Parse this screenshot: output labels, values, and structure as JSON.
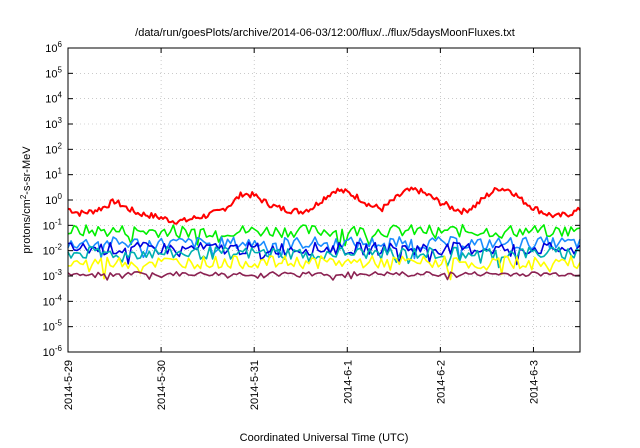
{
  "chart_data": {
    "type": "line",
    "title": "/data/run/goesPlots/archive/2014-06-03/12:00/flux/../flux/5daysMoonFluxes.txt",
    "xlabel": "Coordinated Universal Time (UTC)",
    "ylabel_parts": [
      "protons/cm",
      "2",
      "-s-sr-MeV"
    ],
    "y_scale": "log",
    "ylim": [
      1e-06,
      1000000.0
    ],
    "y_ticks": [
      {
        "base": "10",
        "exp": "-6",
        "value": 1e-06
      },
      {
        "base": "10",
        "exp": "-5",
        "value": 1e-05
      },
      {
        "base": "10",
        "exp": "-4",
        "value": 0.0001
      },
      {
        "base": "10",
        "exp": "-3",
        "value": 0.001
      },
      {
        "base": "10",
        "exp": "-2",
        "value": 0.01
      },
      {
        "base": "10",
        "exp": "-1",
        "value": 0.1
      },
      {
        "base": "10",
        "exp": "0",
        "value": 1
      },
      {
        "base": "10",
        "exp": "1",
        "value": 10
      },
      {
        "base": "10",
        "exp": "2",
        "value": 100
      },
      {
        "base": "10",
        "exp": "3",
        "value": 1000
      },
      {
        "base": "10",
        "exp": "4",
        "value": 10000
      },
      {
        "base": "10",
        "exp": "5",
        "value": 100000
      },
      {
        "base": "10",
        "exp": "6",
        "value": 1000000
      }
    ],
    "x_start": "2014-05-29",
    "x_end": "2014-06-03 12:00",
    "x_tick_labels": [
      "2014-5-29",
      "2014-5-30",
      "2014-5-31",
      "2014-6-1",
      "2014-6-2",
      "2014-6-3"
    ],
    "grid": true,
    "series": [
      {
        "color": "#ff0000",
        "points": [
          [
            "2014-05-29 00:00",
            0.45
          ],
          [
            "2014-05-29 03:00",
            0.3
          ],
          [
            "2014-05-29 06:00",
            0.35
          ],
          [
            "2014-05-29 09:00",
            0.5
          ],
          [
            "2014-05-29 12:00",
            0.9
          ],
          [
            "2014-05-29 15:00",
            0.5
          ],
          [
            "2014-05-29 18:00",
            0.3
          ],
          [
            "2014-05-29 21:00",
            0.25
          ],
          [
            "2014-05-30 00:00",
            0.2
          ],
          [
            "2014-05-30 03:00",
            0.15
          ],
          [
            "2014-05-30 06:00",
            0.15
          ],
          [
            "2014-05-30 09:00",
            0.2
          ],
          [
            "2014-05-30 12:00",
            0.25
          ],
          [
            "2014-05-30 15:00",
            0.35
          ],
          [
            "2014-05-30 18:00",
            0.7
          ],
          [
            "2014-05-30 21:00",
            1.8
          ],
          [
            "2014-05-31 00:00",
            1.5
          ],
          [
            "2014-05-31 03:00",
            0.8
          ],
          [
            "2014-05-31 06:00",
            0.5
          ],
          [
            "2014-05-31 09:00",
            0.4
          ],
          [
            "2014-05-31 12:00",
            0.35
          ],
          [
            "2014-05-31 15:00",
            0.5
          ],
          [
            "2014-05-31 18:00",
            1.2
          ],
          [
            "2014-05-31 21:00",
            2.5
          ],
          [
            "2014-06-01 00:00",
            2.0
          ],
          [
            "2014-06-01 03:00",
            1.2
          ],
          [
            "2014-06-01 06:00",
            0.6
          ],
          [
            "2014-06-01 09:00",
            0.45
          ],
          [
            "2014-06-01 12:00",
            1.0
          ],
          [
            "2014-06-01 15:00",
            2.2
          ],
          [
            "2014-06-01 18:00",
            2.5
          ],
          [
            "2014-06-01 21:00",
            1.5
          ],
          [
            "2014-06-02 00:00",
            0.8
          ],
          [
            "2014-06-02 03:00",
            0.5
          ],
          [
            "2014-06-02 06:00",
            0.35
          ],
          [
            "2014-06-02 09:00",
            0.6
          ],
          [
            "2014-06-02 12:00",
            1.5
          ],
          [
            "2014-06-02 15:00",
            3.0
          ],
          [
            "2014-06-02 18:00",
            2.5
          ],
          [
            "2014-06-02 21:00",
            1.0
          ],
          [
            "2014-06-03 00:00",
            0.5
          ],
          [
            "2014-06-03 03:00",
            0.3
          ],
          [
            "2014-06-03 06:00",
            0.22
          ],
          [
            "2014-06-03 09:00",
            0.28
          ],
          [
            "2014-06-03 12:00",
            0.4
          ]
        ]
      },
      {
        "color": "#00ee00",
        "level": 0.06
      },
      {
        "color": "#1a8cff",
        "level": 0.02
      },
      {
        "color": "#0000dd",
        "level": 0.012
      },
      {
        "color": "#00b0b0",
        "level": 0.008
      },
      {
        "color": "#ffff00",
        "level": 0.0035
      },
      {
        "color": "#8b2252",
        "level": 0.0012
      }
    ]
  }
}
